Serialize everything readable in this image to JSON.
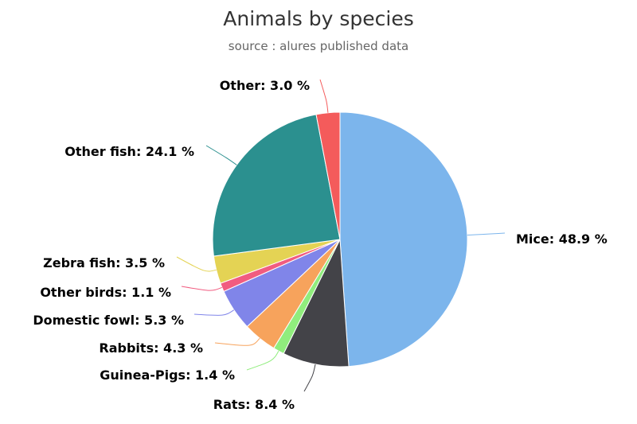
{
  "chart_data": {
    "type": "pie",
    "title": "Animals by species",
    "subtitle": "source : alures published data",
    "slices": [
      {
        "name": "Mice",
        "value": 48.9,
        "label": "Mice: 48.9 %",
        "color": "#7cb5ec"
      },
      {
        "name": "Rats",
        "value": 8.4,
        "label": "Rats: 8.4 %",
        "color": "#434348"
      },
      {
        "name": "Guinea-Pigs",
        "value": 1.4,
        "label": "Guinea-Pigs: 1.4 %",
        "color": "#90ed7d"
      },
      {
        "name": "Rabbits",
        "value": 4.3,
        "label": "Rabbits: 4.3 %",
        "color": "#f7a35c"
      },
      {
        "name": "Domestic fowl",
        "value": 5.3,
        "label": "Domestic fowl: 5.3 %",
        "color": "#8085e9"
      },
      {
        "name": "Other birds",
        "value": 1.1,
        "label": "Other birds: 1.1 %",
        "color": "#f15c80"
      },
      {
        "name": "Zebra fish",
        "value": 3.5,
        "label": "Zebra fish: 3.5 %",
        "color": "#e4d354"
      },
      {
        "name": "Other fish",
        "value": 24.1,
        "label": "Other fish: 24.1 %",
        "color": "#2b908f"
      },
      {
        "name": "Other",
        "value": 3.0,
        "label": "Other: 3.0 %",
        "color": "#f45b5b"
      }
    ]
  }
}
